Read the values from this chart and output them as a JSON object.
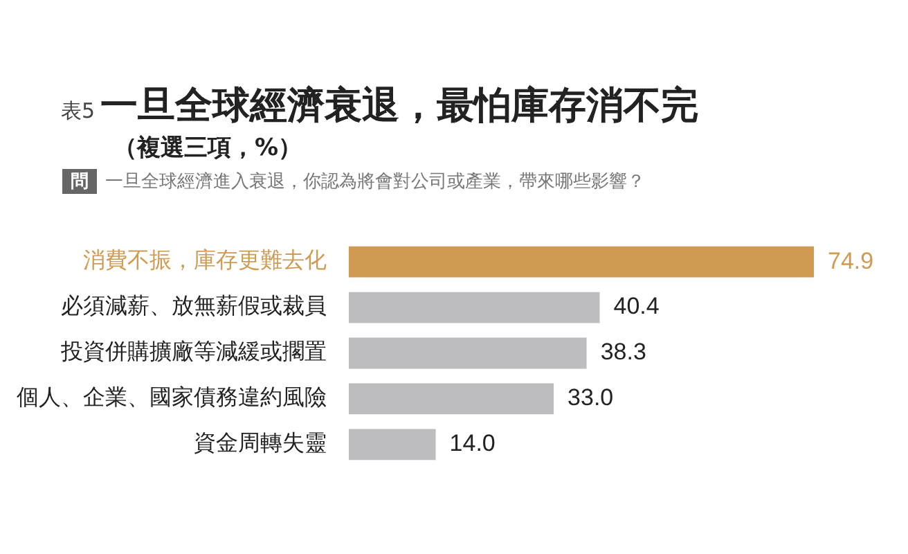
{
  "chart_data": {
    "type": "bar",
    "orientation": "horizontal",
    "title": "表5",
    "subtitle": "一旦全球經濟衰退，最怕庫存消不完",
    "annotations": [
      "（複選三項，%）",
      "問",
      "一旦全球經濟進入衰退，你認為將會對公司或產業，帶來哪些影響？"
    ],
    "categories": [
      "消費不振，庫存更難去化",
      "必須減薪、放無薪假或裁員",
      "投資併購擴廠等減緩或擱置",
      "個人、企業、國家債務違約風險",
      "資金周轉失靈"
    ],
    "values": [
      74.9,
      40.4,
      38.3,
      33.0,
      14.0
    ],
    "colors": [
      "#cf9b52",
      "#bdbdbf",
      "#bdbdbf",
      "#bdbdbf",
      "#bdbdbf"
    ],
    "value_labels": [
      "74.9",
      "40.4",
      "38.3",
      "33.0",
      "14.0"
    ],
    "legend": false
  }
}
